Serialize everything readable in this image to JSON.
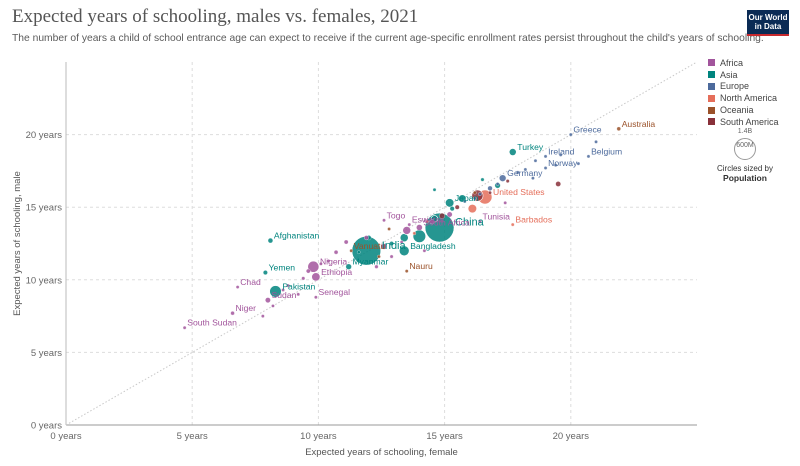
{
  "header": {
    "title": "Expected years of schooling, males vs. females, 2021",
    "subtitle": "The number of years a child of school entrance age can expect to receive if the current age-specific enrollment rates persist throughout the child's years of schooling.",
    "logo_line1": "Our World",
    "logo_line2": "in Data"
  },
  "legend": {
    "items": [
      {
        "label": "Africa",
        "color": "#a2559c"
      },
      {
        "label": "Asia",
        "color": "#00847e"
      },
      {
        "label": "Europe",
        "color": "#4c6a9c"
      },
      {
        "label": "North America",
        "color": "#e56e5a"
      },
      {
        "label": "Oceania",
        "color": "#9a5129"
      },
      {
        "label": "South America",
        "color": "#883039"
      }
    ],
    "size": {
      "top_value": "1.4B",
      "bottom_value": "600M",
      "caption": "Circles sized by",
      "variable": "Population"
    }
  },
  "chart_data": {
    "type": "scatter",
    "title": "Expected years of schooling, males vs. females, 2021",
    "xlabel": "Expected years of schooling, female",
    "ylabel": "Expected years of schooling, male",
    "xlim": [
      0,
      25
    ],
    "ylim": [
      0,
      25
    ],
    "x_ticks": [
      0,
      5,
      10,
      15,
      20
    ],
    "x_tick_labels": [
      "0 years",
      "5 years",
      "10 years",
      "15 years",
      "20 years"
    ],
    "y_ticks": [
      0,
      5,
      10,
      15,
      20
    ],
    "y_tick_labels": [
      "0 years",
      "5 years",
      "10 years",
      "15 years",
      "20 years"
    ],
    "grid": true,
    "reference_line": "y = x",
    "legend_position": "right",
    "region_colors": {
      "Africa": "#a2559c",
      "Asia": "#00847e",
      "Europe": "#4c6a9c",
      "North America": "#e56e5a",
      "Oceania": "#9a5129",
      "South America": "#883039"
    },
    "points": [
      {
        "label": "Australia",
        "region": "Oceania",
        "x": 21.9,
        "y": 20.4,
        "pop": 26
      },
      {
        "label": "Greece",
        "region": "Europe",
        "x": 20.0,
        "y": 20.0,
        "pop": 10
      },
      {
        "label": "Ireland",
        "region": "Europe",
        "x": 19.0,
        "y": 18.5,
        "pop": 5
      },
      {
        "label": "Belgium",
        "region": "Europe",
        "x": 20.7,
        "y": 18.5,
        "pop": 12
      },
      {
        "label": "Turkey",
        "region": "Asia",
        "x": 17.7,
        "y": 18.8,
        "pop": 85
      },
      {
        "label": "Norway",
        "region": "Europe",
        "x": 19.0,
        "y": 17.7,
        "pop": 5
      },
      {
        "label": "Germany",
        "region": "Europe",
        "x": 17.3,
        "y": 17.0,
        "pop": 83
      },
      {
        "label": "United States",
        "region": "North America",
        "x": 16.6,
        "y": 15.7,
        "pop": 336
      },
      {
        "label": "Japan",
        "region": "Asia",
        "x": 15.2,
        "y": 15.3,
        "pop": 124
      },
      {
        "label": "China",
        "region": "Asia",
        "x": 14.8,
        "y": 13.6,
        "pop": 1425
      },
      {
        "label": "Tunisia",
        "region": "Africa",
        "x": 16.4,
        "y": 14.0,
        "pop": 12
      },
      {
        "label": "Barbados",
        "region": "North America",
        "x": 17.7,
        "y": 13.8,
        "pop": 0.3
      },
      {
        "label": "Togo",
        "region": "Africa",
        "x": 12.6,
        "y": 14.1,
        "pop": 9
      },
      {
        "label": "Eswatini",
        "region": "Africa",
        "x": 13.6,
        "y": 13.8,
        "pop": 1
      },
      {
        "label": "South Africa",
        "region": "Africa",
        "x": 14.0,
        "y": 13.6,
        "pop": 60
      },
      {
        "label": "Afghanistan",
        "region": "Asia",
        "x": 8.1,
        "y": 12.7,
        "pop": 40
      },
      {
        "label": "India",
        "region": "Asia",
        "x": 11.9,
        "y": 12.0,
        "pop": 1408
      },
      {
        "label": "Vanuatu",
        "region": "Oceania",
        "x": 11.3,
        "y": 12.0,
        "pop": 0.3
      },
      {
        "label": "Bangladesh",
        "region": "Asia",
        "x": 13.4,
        "y": 12.0,
        "pop": 169
      },
      {
        "label": "Nigeria",
        "region": "Africa",
        "x": 9.8,
        "y": 10.9,
        "pop": 213
      },
      {
        "label": "Myanmar",
        "region": "Asia",
        "x": 11.2,
        "y": 10.9,
        "pop": 54
      },
      {
        "label": "Nauru",
        "region": "Oceania",
        "x": 13.5,
        "y": 10.6,
        "pop": 0.01
      },
      {
        "label": "Yemen",
        "region": "Asia",
        "x": 7.9,
        "y": 10.5,
        "pop": 33
      },
      {
        "label": "Ethiopia",
        "region": "Africa",
        "x": 9.9,
        "y": 10.2,
        "pop": 120
      },
      {
        "label": "Chad",
        "region": "Africa",
        "x": 6.8,
        "y": 9.5,
        "pop": 17
      },
      {
        "label": "Pakistan",
        "region": "Asia",
        "x": 8.3,
        "y": 9.2,
        "pop": 231
      },
      {
        "label": "Sudan",
        "region": "Africa",
        "x": 8.0,
        "y": 8.6,
        "pop": 46
      },
      {
        "label": "Senegal",
        "region": "Africa",
        "x": 9.9,
        "y": 8.8,
        "pop": 17
      },
      {
        "label": "Niger",
        "region": "Africa",
        "x": 6.6,
        "y": 7.7,
        "pop": 25
      },
      {
        "label": "South Sudan",
        "region": "Africa",
        "x": 4.7,
        "y": 6.7,
        "pop": 11
      },
      {
        "label": "",
        "region": "Europe",
        "x": 21.0,
        "y": 19.5,
        "pop": 10
      },
      {
        "label": "",
        "region": "Europe",
        "x": 19.6,
        "y": 18.6,
        "pop": 9
      },
      {
        "label": "",
        "region": "Europe",
        "x": 18.6,
        "y": 18.2,
        "pop": 6
      },
      {
        "label": "",
        "region": "Europe",
        "x": 18.2,
        "y": 17.6,
        "pop": 10
      },
      {
        "label": "",
        "region": "Europe",
        "x": 19.4,
        "y": 17.9,
        "pop": 5
      },
      {
        "label": "",
        "region": "Europe",
        "x": 20.3,
        "y": 18.0,
        "pop": 2
      },
      {
        "label": "",
        "region": "Europe",
        "x": 17.9,
        "y": 17.4,
        "pop": 17
      },
      {
        "label": "",
        "region": "Europe",
        "x": 18.5,
        "y": 17.0,
        "pop": 8
      },
      {
        "label": "",
        "region": "Europe",
        "x": 17.1,
        "y": 16.6,
        "pop": 10
      },
      {
        "label": "",
        "region": "Europe",
        "x": 16.8,
        "y": 16.3,
        "pop": 38
      },
      {
        "label": "",
        "region": "Europe",
        "x": 16.4,
        "y": 15.9,
        "pop": 19
      },
      {
        "label": "",
        "region": "Europe",
        "x": 16.2,
        "y": 15.6,
        "pop": 9
      },
      {
        "label": "",
        "region": "Europe",
        "x": 15.8,
        "y": 15.4,
        "pop": 6
      },
      {
        "label": "",
        "region": "South America",
        "x": 19.5,
        "y": 16.6,
        "pop": 45
      },
      {
        "label": "",
        "region": "South America",
        "x": 17.5,
        "y": 16.8,
        "pop": 19
      },
      {
        "label": "",
        "region": "South America",
        "x": 16.3,
        "y": 15.8,
        "pop": 214
      },
      {
        "label": "",
        "region": "South America",
        "x": 16.8,
        "y": 16.0,
        "pop": 3
      },
      {
        "label": "",
        "region": "South America",
        "x": 15.5,
        "y": 15.0,
        "pop": 33
      },
      {
        "label": "",
        "region": "South America",
        "x": 14.9,
        "y": 14.4,
        "pop": 51
      },
      {
        "label": "",
        "region": "North America",
        "x": 16.1,
        "y": 14.9,
        "pop": 127
      },
      {
        "label": "",
        "region": "North America",
        "x": 14.3,
        "y": 14.0,
        "pop": 10
      },
      {
        "label": "",
        "region": "North America",
        "x": 13.8,
        "y": 13.2,
        "pop": 17
      },
      {
        "label": "",
        "region": "Asia",
        "x": 16.5,
        "y": 16.9,
        "pop": 20
      },
      {
        "label": "",
        "region": "Asia",
        "x": 17.1,
        "y": 16.5,
        "pop": 52
      },
      {
        "label": "",
        "region": "Asia",
        "x": 15.7,
        "y": 15.6,
        "pop": 99
      },
      {
        "label": "",
        "region": "Asia",
        "x": 15.3,
        "y": 14.9,
        "pop": 34
      },
      {
        "label": "",
        "region": "Asia",
        "x": 14.6,
        "y": 14.2,
        "pop": 72
      },
      {
        "label": "",
        "region": "Asia",
        "x": 14.0,
        "y": 13.0,
        "pop": 275
      },
      {
        "label": "",
        "region": "Asia",
        "x": 13.4,
        "y": 12.9,
        "pop": 114
      },
      {
        "label": "",
        "region": "Asia",
        "x": 12.9,
        "y": 12.5,
        "pop": 30
      },
      {
        "label": "",
        "region": "Asia",
        "x": 12.0,
        "y": 12.9,
        "pop": 35
      },
      {
        "label": "",
        "region": "Asia",
        "x": 11.6,
        "y": 11.9,
        "pop": 7
      },
      {
        "label": "",
        "region": "Asia",
        "x": 14.6,
        "y": 16.2,
        "pop": 1
      },
      {
        "label": "",
        "region": "Africa",
        "x": 15.2,
        "y": 14.5,
        "pop": 46
      },
      {
        "label": "",
        "region": "Africa",
        "x": 14.5,
        "y": 14.0,
        "pop": 37
      },
      {
        "label": "",
        "region": "Africa",
        "x": 13.5,
        "y": 13.4,
        "pop": 109
      },
      {
        "label": "",
        "region": "Africa",
        "x": 13.3,
        "y": 12.6,
        "pop": 2
      },
      {
        "label": "",
        "region": "Africa",
        "x": 12.9,
        "y": 11.6,
        "pop": 19
      },
      {
        "label": "",
        "region": "Africa",
        "x": 12.6,
        "y": 12.3,
        "pop": 54
      },
      {
        "label": "",
        "region": "Africa",
        "x": 11.9,
        "y": 12.9,
        "pop": 33
      },
      {
        "label": "",
        "region": "Africa",
        "x": 11.1,
        "y": 12.6,
        "pop": 28
      },
      {
        "label": "",
        "region": "Africa",
        "x": 10.7,
        "y": 11.9,
        "pop": 27
      },
      {
        "label": "",
        "region": "Africa",
        "x": 10.4,
        "y": 11.3,
        "pop": 12
      },
      {
        "label": "",
        "region": "Africa",
        "x": 10.1,
        "y": 11.1,
        "pop": 8
      },
      {
        "label": "",
        "region": "Africa",
        "x": 9.6,
        "y": 10.6,
        "pop": 29
      },
      {
        "label": "",
        "region": "Africa",
        "x": 9.4,
        "y": 10.1,
        "pop": 20
      },
      {
        "label": "",
        "region": "Africa",
        "x": 8.8,
        "y": 9.6,
        "pop": 13
      },
      {
        "label": "",
        "region": "Africa",
        "x": 8.6,
        "y": 9.3,
        "pop": 17
      },
      {
        "label": "",
        "region": "Africa",
        "x": 8.2,
        "y": 8.2,
        "pop": 5
      },
      {
        "label": "",
        "region": "Africa",
        "x": 7.8,
        "y": 7.5,
        "pop": 8
      },
      {
        "label": "",
        "region": "Africa",
        "x": 9.2,
        "y": 9.0,
        "pop": 13
      },
      {
        "label": "",
        "region": "Africa",
        "x": 12.3,
        "y": 10.9,
        "pop": 22
      },
      {
        "label": "",
        "region": "Africa",
        "x": 14.2,
        "y": 12.0,
        "pop": 6
      },
      {
        "label": "",
        "region": "Africa",
        "x": 17.4,
        "y": 15.3,
        "pop": 1
      },
      {
        "label": "",
        "region": "Oceania",
        "x": 12.8,
        "y": 13.5,
        "pop": 1
      },
      {
        "label": "",
        "region": "Oceania",
        "x": 16.2,
        "y": 16.0,
        "pop": 5
      },
      {
        "label": "",
        "region": "Oceania",
        "x": 12.4,
        "y": 11.6,
        "pop": 0.7
      }
    ]
  }
}
